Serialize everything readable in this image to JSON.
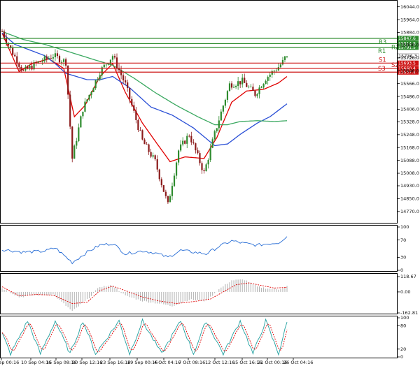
{
  "chart_data": [
    {
      "type": "candlestick",
      "price_labels": [
        "16044.0",
        "15964.0",
        "15884.0",
        "15806.0",
        "15726.0",
        "15646.0",
        "15566.0",
        "15486.0",
        "15406.0",
        "15328.0",
        "15248.0",
        "15168.0",
        "15088.0",
        "15008.0",
        "14930.0",
        "14850.0",
        "14770.0"
      ],
      "price_range": [
        14730,
        16060
      ],
      "time_labels": [
        "8 Sep 00:16",
        "10 Sep 04:16",
        "15 Sep 08:16",
        "20 Sep 12:16",
        "23 Sep 16:16",
        "29 Sep 00:16",
        "4 Oct 04:16",
        "7 Oct 08:16",
        "12 Oct 12:16",
        "15 Oct 16:16",
        "21 Oct 00:16",
        "26 Oct 04:16"
      ],
      "candle_count": 135,
      "candle_colors": {
        "up": "#2e8b2e",
        "down": "#8b1a1a"
      },
      "price_anchors": [
        {
          "i": 0,
          "p": 15890
        },
        {
          "i": 4,
          "p": 15780
        },
        {
          "i": 10,
          "p": 15640
        },
        {
          "i": 16,
          "p": 15690
        },
        {
          "i": 24,
          "p": 15740
        },
        {
          "i": 30,
          "p": 15700
        },
        {
          "i": 33,
          "p": 15100
        },
        {
          "i": 38,
          "p": 15410
        },
        {
          "i": 46,
          "p": 15640
        },
        {
          "i": 52,
          "p": 15740
        },
        {
          "i": 58,
          "p": 15560
        },
        {
          "i": 66,
          "p": 15210
        },
        {
          "i": 72,
          "p": 15080
        },
        {
          "i": 78,
          "p": 14810
        },
        {
          "i": 83,
          "p": 15150
        },
        {
          "i": 88,
          "p": 15250
        },
        {
          "i": 95,
          "p": 15010
        },
        {
          "i": 101,
          "p": 15300
        },
        {
          "i": 107,
          "p": 15560
        },
        {
          "i": 113,
          "p": 15580
        },
        {
          "i": 119,
          "p": 15500
        },
        {
          "i": 124,
          "p": 15600
        },
        {
          "i": 130,
          "p": 15670
        },
        {
          "i": 132,
          "p": 15700
        },
        {
          "i": 134,
          "p": 15750
        }
      ],
      "levels": [
        {
          "name": "R3",
          "value": 15847.6,
          "label": "15847.6",
          "color": "#2e8b2e"
        },
        {
          "name": "R2",
          "value": 15814.8,
          "label": "15814.8",
          "color": "#2e8b2e"
        },
        {
          "name": "R1",
          "value": 15791.5,
          "label": "15791.5",
          "color": "#2e8b2e"
        },
        {
          "name": "S1",
          "value": 15693.5,
          "label": "15693.5",
          "color": "#cc1111"
        },
        {
          "name": "S2",
          "value": 15660.4,
          "label": "15660.4",
          "color": "#cc1111"
        },
        {
          "name": "S3",
          "value": 15637.4,
          "label": "15637.4",
          "color": "#cc1111"
        }
      ],
      "current_price": {
        "value": 15736.3,
        "label": "15736.3"
      },
      "moving_averages": [
        {
          "name": "MA fast",
          "color": "#e00000",
          "anchors": [
            {
              "i": 0,
              "p": 15880
            },
            {
              "i": 8,
              "p": 15640
            },
            {
              "i": 14,
              "p": 15690
            },
            {
              "i": 22,
              "p": 15720
            },
            {
              "i": 29,
              "p": 15660
            },
            {
              "i": 34,
              "p": 15360
            },
            {
              "i": 39,
              "p": 15430
            },
            {
              "i": 46,
              "p": 15610
            },
            {
              "i": 52,
              "p": 15690
            },
            {
              "i": 58,
              "p": 15510
            },
            {
              "i": 66,
              "p": 15320
            },
            {
              "i": 73,
              "p": 15190
            },
            {
              "i": 79,
              "p": 15080
            },
            {
              "i": 86,
              "p": 15110
            },
            {
              "i": 95,
              "p": 15100
            },
            {
              "i": 101,
              "p": 15230
            },
            {
              "i": 108,
              "p": 15450
            },
            {
              "i": 115,
              "p": 15520
            },
            {
              "i": 123,
              "p": 15530
            },
            {
              "i": 130,
              "p": 15570
            },
            {
              "i": 134,
              "p": 15610
            }
          ]
        },
        {
          "name": "MA medium",
          "color": "#2a4fd6",
          "anchors": [
            {
              "i": 0,
              "p": 15880
            },
            {
              "i": 6,
              "p": 15810
            },
            {
              "i": 14,
              "p": 15770
            },
            {
              "i": 20,
              "p": 15740
            },
            {
              "i": 25,
              "p": 15690
            },
            {
              "i": 30,
              "p": 15630
            },
            {
              "i": 40,
              "p": 15590
            },
            {
              "i": 46,
              "p": 15590
            },
            {
              "i": 52,
              "p": 15610
            },
            {
              "i": 60,
              "p": 15540
            },
            {
              "i": 70,
              "p": 15420
            },
            {
              "i": 80,
              "p": 15370
            },
            {
              "i": 90,
              "p": 15290
            },
            {
              "i": 100,
              "p": 15180
            },
            {
              "i": 106,
              "p": 15190
            },
            {
              "i": 112,
              "p": 15250
            },
            {
              "i": 120,
              "p": 15320
            },
            {
              "i": 126,
              "p": 15360
            },
            {
              "i": 130,
              "p": 15400
            },
            {
              "i": 134,
              "p": 15440
            }
          ]
        },
        {
          "name": "MA slow",
          "color": "#3aa860",
          "anchors": [
            {
              "i": 0,
              "p": 15890
            },
            {
              "i": 10,
              "p": 15840
            },
            {
              "i": 20,
              "p": 15810
            },
            {
              "i": 30,
              "p": 15770
            },
            {
              "i": 42,
              "p": 15720
            },
            {
              "i": 52,
              "p": 15680
            },
            {
              "i": 62,
              "p": 15600
            },
            {
              "i": 72,
              "p": 15510
            },
            {
              "i": 82,
              "p": 15430
            },
            {
              "i": 92,
              "p": 15360
            },
            {
              "i": 100,
              "p": 15310
            },
            {
              "i": 106,
              "p": 15310
            },
            {
              "i": 112,
              "p": 15330
            },
            {
              "i": 120,
              "p": 15335
            },
            {
              "i": 128,
              "p": 15330
            },
            {
              "i": 134,
              "p": 15335
            }
          ]
        }
      ]
    },
    {
      "type": "line",
      "name": "RSI",
      "y_labels": [
        "100",
        "70",
        "30",
        "0"
      ],
      "y_range": [
        0,
        100
      ],
      "color": "#2a6fd6",
      "anchors": [
        {
          "i": 0,
          "p": 48
        },
        {
          "i": 10,
          "p": 42
        },
        {
          "i": 20,
          "p": 44
        },
        {
          "i": 25,
          "p": 52
        },
        {
          "i": 33,
          "p": 18
        },
        {
          "i": 40,
          "p": 42
        },
        {
          "i": 46,
          "p": 58
        },
        {
          "i": 52,
          "p": 62
        },
        {
          "i": 58,
          "p": 38
        },
        {
          "i": 66,
          "p": 45
        },
        {
          "i": 72,
          "p": 40
        },
        {
          "i": 78,
          "p": 30
        },
        {
          "i": 84,
          "p": 46
        },
        {
          "i": 90,
          "p": 42
        },
        {
          "i": 96,
          "p": 38
        },
        {
          "i": 102,
          "p": 55
        },
        {
          "i": 108,
          "p": 68
        },
        {
          "i": 114,
          "p": 62
        },
        {
          "i": 120,
          "p": 58
        },
        {
          "i": 126,
          "p": 62
        },
        {
          "i": 130,
          "p": 64
        },
        {
          "i": 134,
          "p": 78
        }
      ]
    },
    {
      "type": "histogram",
      "name": "MACD",
      "y_labels": [
        "118.67",
        "0.00",
        "-162.81"
      ],
      "y_range": [
        -162.81,
        118.67
      ],
      "bar_color": "#b0b0b0",
      "signal_color": "#e00000",
      "bar_anchors": [
        {
          "i": 0,
          "p": 30
        },
        {
          "i": 8,
          "p": -40
        },
        {
          "i": 16,
          "p": -25
        },
        {
          "i": 24,
          "p": -20
        },
        {
          "i": 33,
          "p": -150
        },
        {
          "i": 40,
          "p": -60
        },
        {
          "i": 46,
          "p": 40
        },
        {
          "i": 52,
          "p": 50
        },
        {
          "i": 58,
          "p": -30
        },
        {
          "i": 66,
          "p": -70
        },
        {
          "i": 74,
          "p": -90
        },
        {
          "i": 80,
          "p": -110
        },
        {
          "i": 88,
          "p": -60
        },
        {
          "i": 96,
          "p": -70
        },
        {
          "i": 102,
          "p": 20
        },
        {
          "i": 108,
          "p": 90
        },
        {
          "i": 114,
          "p": 95
        },
        {
          "i": 120,
          "p": 40
        },
        {
          "i": 126,
          "p": 25
        },
        {
          "i": 130,
          "p": 20
        },
        {
          "i": 134,
          "p": 45
        }
      ],
      "signal_anchors": [
        {
          "i": 0,
          "p": 40
        },
        {
          "i": 8,
          "p": -30
        },
        {
          "i": 16,
          "p": -20
        },
        {
          "i": 24,
          "p": -25
        },
        {
          "i": 33,
          "p": -90
        },
        {
          "i": 40,
          "p": -80
        },
        {
          "i": 46,
          "p": 10
        },
        {
          "i": 52,
          "p": 45
        },
        {
          "i": 58,
          "p": 10
        },
        {
          "i": 66,
          "p": -40
        },
        {
          "i": 74,
          "p": -70
        },
        {
          "i": 82,
          "p": -90
        },
        {
          "i": 90,
          "p": -75
        },
        {
          "i": 98,
          "p": -55
        },
        {
          "i": 104,
          "p": 0
        },
        {
          "i": 110,
          "p": 55
        },
        {
          "i": 116,
          "p": 70
        },
        {
          "i": 122,
          "p": 50
        },
        {
          "i": 128,
          "p": 30
        },
        {
          "i": 134,
          "p": 35
        }
      ]
    },
    {
      "type": "line",
      "name": "Stochastic",
      "y_labels": [
        "100",
        "80",
        "20",
        "0"
      ],
      "y_range": [
        0,
        100
      ],
      "main_color": "#20a0a0",
      "signal_color": "#e00000",
      "swing_highs": [
        12,
        25,
        38,
        55,
        66,
        84,
        96,
        112,
        124
      ],
      "swing_lows": [
        4,
        18,
        32,
        44,
        60,
        75,
        90,
        104,
        118,
        130
      ],
      "end_value": 88
    }
  ]
}
